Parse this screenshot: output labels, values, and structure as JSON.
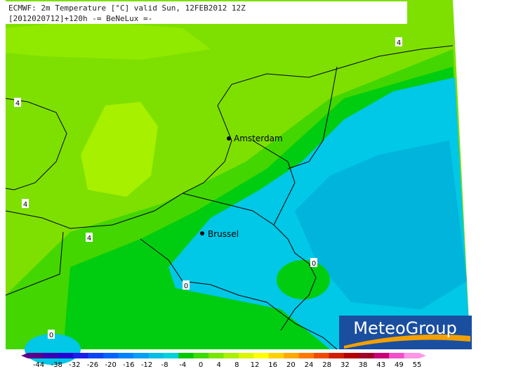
{
  "header": {
    "line1": "ECMWF: 2m Temperature [°C] valid Sun, 12FEB2012 12Z",
    "line2": "[2012020712]+120h  -= BeNeLux =-"
  },
  "cities": [
    {
      "name": "Amsterdam"
    },
    {
      "name": "Brussel"
    }
  ],
  "contour_labels": [
    4,
    4,
    4,
    4,
    0,
    0,
    0
  ],
  "legend": {
    "labels": [
      -44,
      -38,
      -32,
      -26,
      -20,
      -16,
      -12,
      -8,
      -4,
      0,
      4,
      8,
      12,
      16,
      20,
      24,
      28,
      32,
      38,
      43,
      49,
      55
    ],
    "colors": [
      "#5a008c",
      "#3c00b4",
      "#2800d2",
      "#1e1eeb",
      "#0a46f5",
      "#0064ff",
      "#0082ff",
      "#00a0f5",
      "#00bee6",
      "#00d2dc",
      "#00c800",
      "#3cdc00",
      "#78e600",
      "#aaf000",
      "#dcf500",
      "#ffff00",
      "#ffd200",
      "#ffaa00",
      "#ff7800",
      "#f04b00",
      "#d21e00",
      "#b40000",
      "#a00028",
      "#c80078",
      "#f050c8",
      "#ff96e6"
    ]
  },
  "logo": "MeteoGroup"
}
